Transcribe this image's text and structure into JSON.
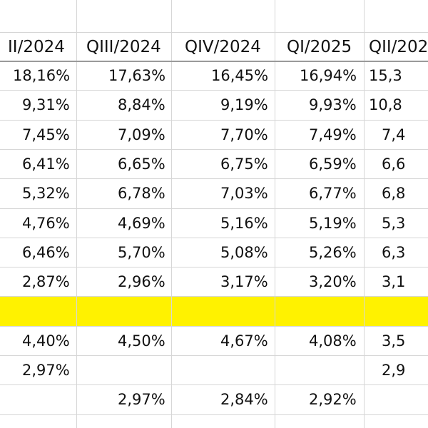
{
  "table": {
    "headers": [
      "II/2024",
      "QIII/2024",
      "QIV/2024",
      "QI/2025",
      "QII/202"
    ],
    "rows": [
      [
        "18,16%",
        "17,63%",
        "16,45%",
        "16,94%",
        "15,3"
      ],
      [
        "9,31%",
        "8,84%",
        "9,19%",
        "9,93%",
        "10,8"
      ],
      [
        "7,45%",
        "7,09%",
        "7,70%",
        "7,49%",
        "7,4"
      ],
      [
        "6,41%",
        "6,65%",
        "6,75%",
        "6,59%",
        "6,6"
      ],
      [
        "5,32%",
        "6,78%",
        "7,03%",
        "6,77%",
        "6,8"
      ],
      [
        "4,76%",
        "4,69%",
        "5,16%",
        "5,19%",
        "5,3"
      ],
      [
        "6,46%",
        "5,70%",
        "5,08%",
        "5,26%",
        "6,3"
      ],
      [
        "2,87%",
        "2,96%",
        "3,17%",
        "3,20%",
        "3,1"
      ],
      [
        null,
        null,
        null,
        null,
        null
      ],
      [
        "4,40%",
        "4,50%",
        "4,67%",
        "4,08%",
        "3,5"
      ],
      [
        "2,97%",
        null,
        null,
        null,
        "2,9"
      ],
      [
        null,
        "2,97%",
        "2,84%",
        "2,92%",
        null
      ]
    ]
  }
}
